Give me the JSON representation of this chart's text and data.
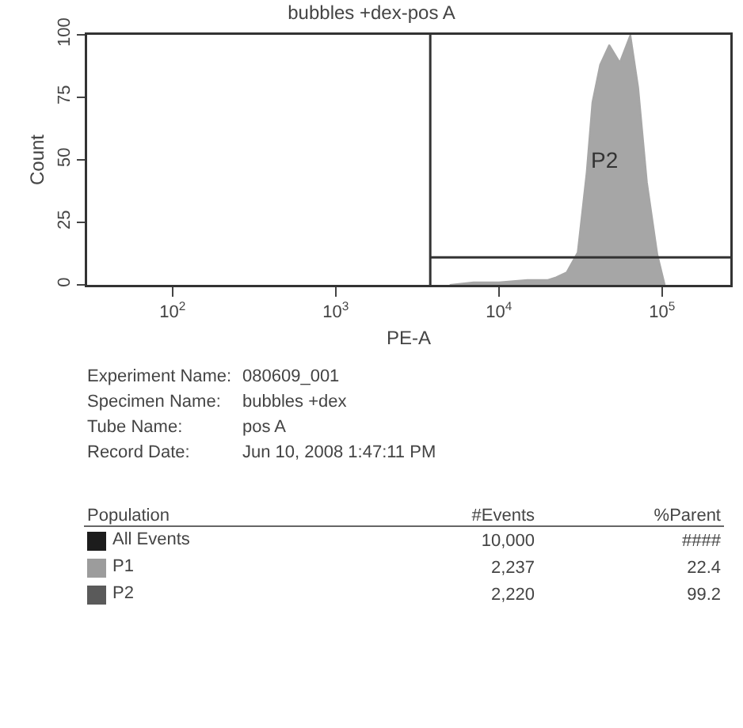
{
  "chart_data": [
    {
      "type": "area",
      "title": "bubbles +dex-pos A",
      "xlabel": "PE-A",
      "ylabel": "Count",
      "log": "x",
      "color": "#a6a6a6",
      "x": [
        5000,
        7000,
        10000,
        15000,
        20000,
        22400,
        26000,
        30400,
        34500,
        37400,
        41700,
        47500,
        55100,
        64000,
        71500,
        80900,
        93800,
        104000
      ],
      "values": [
        0,
        1,
        1,
        2,
        2,
        3,
        5,
        13,
        45,
        73,
        88,
        96,
        89,
        100,
        79,
        41,
        12,
        0
      ],
      "xlim": [
        30,
        262144
      ],
      "ylim": [
        0,
        100
      ],
      "xticks": [
        {
          "value": 100,
          "label": "10$^{2}$"
        },
        {
          "value": 1000,
          "label": "10$^{3}$"
        },
        {
          "value": 10000,
          "label": "10$^{4}$"
        },
        {
          "value": 100000,
          "label": "10$^{5}$"
        }
      ],
      "yticks": [
        0,
        25,
        50,
        75,
        100
      ],
      "ref_lines": [
        {
          "axis": "x",
          "value": 3800
        },
        {
          "axis": "y",
          "value": 11,
          "label": "P2"
        }
      ]
    },
    {
      "type": "other",
      "annotations": [
        "Experiment Name:",
        "080609_001",
        "Specimen Name:",
        "bubbles +dex",
        "Tube Name:",
        "pos A",
        "Record Date:",
        "Jun 10, 2008 1:47:11 PM",
        "Population",
        "#Events",
        "%Parent",
        "All Events",
        "10,000",
        "####",
        "P1",
        "2,237",
        "22.4",
        "P2",
        "2,220",
        "99.2"
      ]
    }
  ]
}
